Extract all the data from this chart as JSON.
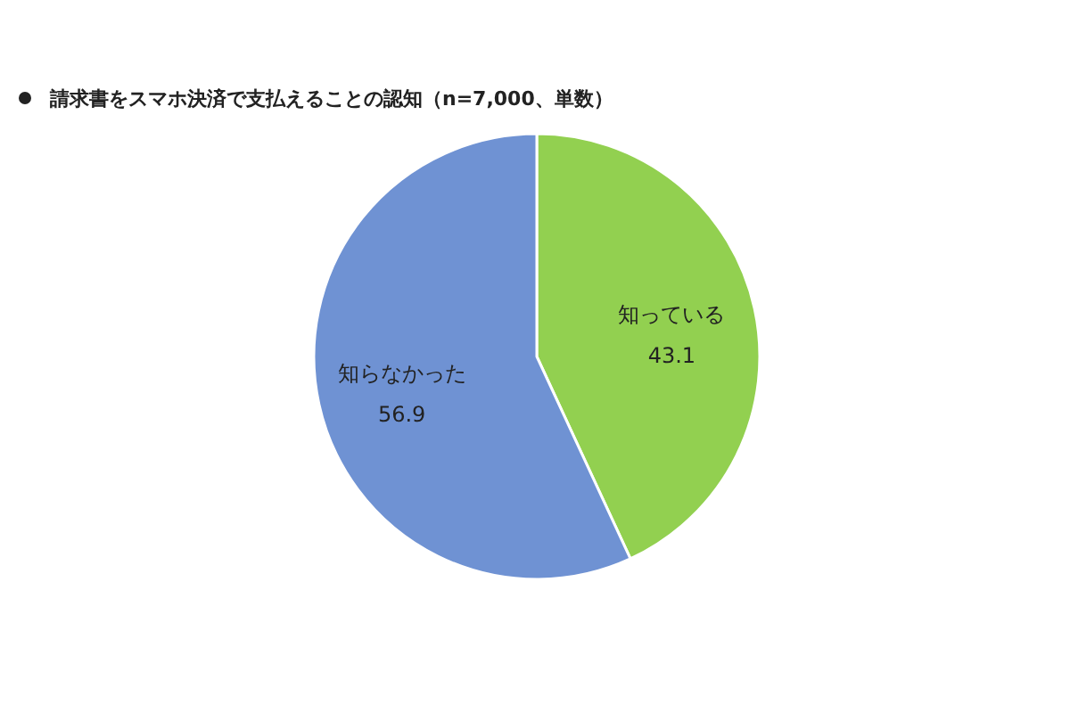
{
  "chart_data": {
    "type": "pie",
    "title": "請求書をスマホ決済で支払えることの認知（n=7,000、単数）",
    "categories": [
      "知っている",
      "知らなかった"
    ],
    "values": [
      43.1,
      56.9
    ],
    "colors": [
      "#92d050",
      "#6f92d3"
    ],
    "data_labels": true,
    "legend": false
  }
}
